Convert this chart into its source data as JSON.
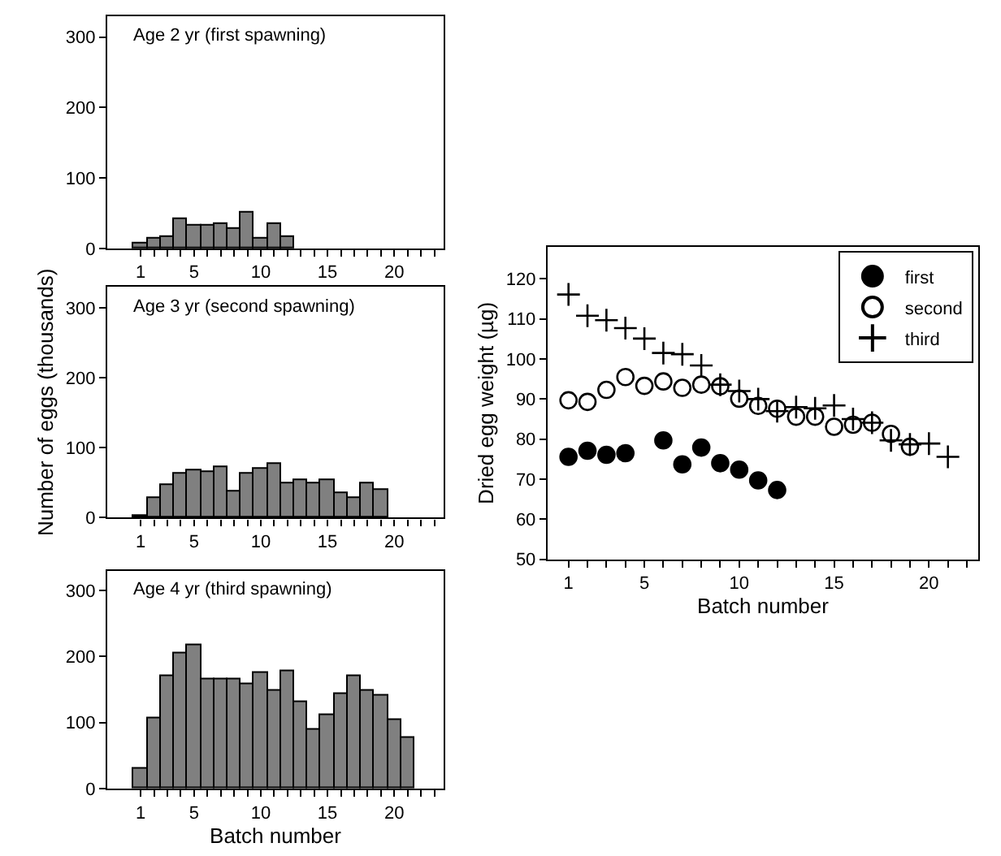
{
  "chart_data": [
    {
      "type": "bar",
      "title": "Age 2 yr (first spawning)",
      "x": [
        1,
        2,
        3,
        4,
        5,
        6,
        7,
        8,
        9,
        10,
        11,
        12
      ],
      "series": [
        {
          "color": "#808080",
          "values": [
            8,
            14,
            17,
            41,
            32,
            32,
            35,
            29,
            52,
            15,
            35,
            17
          ]
        }
      ],
      "xlim": [
        -1.5,
        23.7
      ],
      "ylim": [
        0,
        330
      ],
      "yticks": [
        0,
        100,
        200,
        300
      ],
      "xticks": [
        1,
        {
          "value": 2,
          "label": null
        },
        {
          "value": 3,
          "label": null
        },
        {
          "value": 4,
          "label": null
        },
        5,
        {
          "value": 6,
          "label": null
        },
        {
          "value": 7,
          "label": null
        },
        {
          "value": 8,
          "label": null
        },
        {
          "value": 9,
          "label": null
        },
        10,
        {
          "value": 11,
          "label": null
        },
        {
          "value": 12,
          "label": null
        },
        {
          "value": 13,
          "label": null
        },
        {
          "value": 14,
          "label": null
        },
        15,
        {
          "value": 16,
          "label": null
        },
        {
          "value": 17,
          "label": null
        },
        {
          "value": 18,
          "label": null
        },
        {
          "value": 19,
          "label": null
        },
        20,
        {
          "value": 21,
          "label": null
        },
        {
          "value": 22,
          "label": null
        },
        {
          "value": 23,
          "label": null
        }
      ]
    },
    {
      "type": "bar",
      "title": "Age 3 yr (second spawning)",
      "ylabel": "Number of eggs (thousands)",
      "x": [
        1,
        2,
        3,
        4,
        5,
        6,
        7,
        8,
        9,
        10,
        11,
        12,
        13,
        14,
        15,
        16,
        17,
        18,
        19
      ],
      "series": [
        {
          "color": "#808080",
          "values": [
            2,
            28,
            47,
            62,
            68,
            65,
            73,
            38,
            64,
            70,
            76,
            50,
            53,
            50,
            53,
            35,
            28,
            50,
            40
          ]
        }
      ],
      "xlim": [
        -1.5,
        23.7
      ],
      "ylim": [
        0,
        330
      ],
      "yticks": [
        0,
        100,
        200,
        300
      ],
      "xticks": [
        1,
        {
          "value": 2,
          "label": null
        },
        {
          "value": 3,
          "label": null
        },
        {
          "value": 4,
          "label": null
        },
        5,
        {
          "value": 6,
          "label": null
        },
        {
          "value": 7,
          "label": null
        },
        {
          "value": 8,
          "label": null
        },
        {
          "value": 9,
          "label": null
        },
        10,
        {
          "value": 11,
          "label": null
        },
        {
          "value": 12,
          "label": null
        },
        {
          "value": 13,
          "label": null
        },
        {
          "value": 14,
          "label": null
        },
        15,
        {
          "value": 16,
          "label": null
        },
        {
          "value": 17,
          "label": null
        },
        {
          "value": 18,
          "label": null
        },
        {
          "value": 19,
          "label": null
        },
        20,
        {
          "value": 21,
          "label": null
        },
        {
          "value": 22,
          "label": null
        },
        {
          "value": 23,
          "label": null
        }
      ]
    },
    {
      "type": "bar",
      "title": "Age 4 yr (third spawning)",
      "xlabel": "Batch number",
      "x": [
        1,
        2,
        3,
        4,
        5,
        6,
        7,
        8,
        9,
        10,
        11,
        12,
        13,
        14,
        15,
        16,
        17,
        18,
        19,
        20,
        21
      ],
      "series": [
        {
          "color": "#808080",
          "values": [
            29,
            106,
            171,
            205,
            216,
            165,
            165,
            165,
            157,
            175,
            147,
            178,
            130,
            88,
            110,
            142,
            171,
            147,
            140,
            104,
            77
          ]
        }
      ],
      "xlim": [
        -1.5,
        23.7
      ],
      "ylim": [
        0,
        330
      ],
      "yticks": [
        0,
        100,
        200,
        300
      ],
      "xticks": [
        1,
        {
          "value": 2,
          "label": null
        },
        {
          "value": 3,
          "label": null
        },
        {
          "value": 4,
          "label": null
        },
        5,
        {
          "value": 6,
          "label": null
        },
        {
          "value": 7,
          "label": null
        },
        {
          "value": 8,
          "label": null
        },
        {
          "value": 9,
          "label": null
        },
        10,
        {
          "value": 11,
          "label": null
        },
        {
          "value": 12,
          "label": null
        },
        {
          "value": 13,
          "label": null
        },
        {
          "value": 14,
          "label": null
        },
        15,
        {
          "value": 16,
          "label": null
        },
        {
          "value": 17,
          "label": null
        },
        {
          "value": 18,
          "label": null
        },
        {
          "value": 19,
          "label": null
        },
        20,
        {
          "value": 21,
          "label": null
        },
        {
          "value": 22,
          "label": null
        },
        {
          "value": 23,
          "label": null
        }
      ]
    },
    {
      "type": "scatter",
      "xlabel": "Batch number",
      "ylabel": "Dried egg weight (µg)",
      "series": [
        {
          "name": "first",
          "color": "#000000",
          "marker": "circle",
          "x": [
            1,
            2,
            3,
            4,
            6,
            7,
            8,
            9,
            10,
            11,
            12
          ],
          "values": [
            75.6,
            77.1,
            76.1,
            76.5,
            79.7,
            73.7,
            77.9,
            74,
            72.4,
            69.7,
            67.3
          ]
        },
        {
          "name": "second",
          "color": "#000000",
          "marker": "circle-open",
          "x": [
            1,
            2,
            3,
            4,
            5,
            6,
            7,
            8,
            9,
            10,
            11,
            12,
            13,
            14,
            15,
            16,
            17,
            18,
            19
          ],
          "values": [
            89.7,
            89.3,
            92.3,
            95.5,
            93.3,
            94.4,
            92.8,
            93.6,
            93.2,
            90.1,
            88.3,
            87.6,
            85.6,
            85.6,
            83.1,
            83.6,
            84.1,
            81.3,
            78.1
          ]
        },
        {
          "name": "third",
          "color": "#000000",
          "marker": "cross",
          "x": [
            1,
            2,
            3,
            4,
            5,
            6,
            7,
            8,
            9,
            10,
            11,
            12,
            13,
            14,
            15,
            16,
            17,
            18,
            19,
            20,
            21
          ],
          "values": [
            116.1,
            110.8,
            109.7,
            107.7,
            105.1,
            101.5,
            101.2,
            98.4,
            93.6,
            92,
            90,
            87,
            88,
            87.7,
            88.4,
            85,
            84.1,
            79.7,
            78.7,
            78.9,
            75.6
          ]
        }
      ],
      "xlim": [
        -0.1,
        22.6
      ],
      "ylim": [
        50,
        128
      ],
      "yticks": [
        50,
        60,
        70,
        80,
        90,
        100,
        110,
        120
      ],
      "xticks": [
        1,
        {
          "value": 2,
          "label": null
        },
        {
          "value": 3,
          "label": null
        },
        {
          "value": 4,
          "label": null
        },
        5,
        {
          "value": 6,
          "label": null
        },
        {
          "value": 7,
          "label": null
        },
        {
          "value": 8,
          "label": null
        },
        {
          "value": 9,
          "label": null
        },
        10,
        {
          "value": 11,
          "label": null
        },
        {
          "value": 12,
          "label": null
        },
        {
          "value": 13,
          "label": null
        },
        {
          "value": 14,
          "label": null
        },
        15,
        {
          "value": 16,
          "label": null
        },
        {
          "value": 17,
          "label": null
        },
        {
          "value": 18,
          "label": null
        },
        {
          "value": 19,
          "label": null
        },
        20,
        {
          "value": 21,
          "label": null
        },
        {
          "value": 22,
          "label": null
        }
      ],
      "legend": "top right"
    }
  ]
}
